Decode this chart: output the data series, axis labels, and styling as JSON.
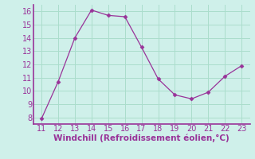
{
  "x": [
    11,
    12,
    13,
    14,
    15,
    16,
    17,
    18,
    19,
    20,
    21,
    22,
    23
  ],
  "y": [
    7.9,
    10.7,
    14.0,
    16.1,
    15.7,
    15.6,
    13.3,
    10.9,
    9.7,
    9.4,
    9.9,
    11.1,
    11.9
  ],
  "line_color": "#993399",
  "marker": "D",
  "marker_size": 2.5,
  "background_color": "#cff0ea",
  "grid_color": "#aaddcc",
  "xlabel": "Windchill (Refroidissement éolien,°C)",
  "xlabel_color": "#993399",
  "xlabel_fontsize": 7.5,
  "tick_color": "#993399",
  "tick_fontsize": 7,
  "xlim": [
    10.5,
    23.5
  ],
  "ylim": [
    7.5,
    16.5
  ],
  "yticks": [
    8,
    9,
    10,
    11,
    12,
    13,
    14,
    15,
    16
  ],
  "xticks": [
    11,
    12,
    13,
    14,
    15,
    16,
    17,
    18,
    19,
    20,
    21,
    22,
    23
  ],
  "border_color": "#993399"
}
